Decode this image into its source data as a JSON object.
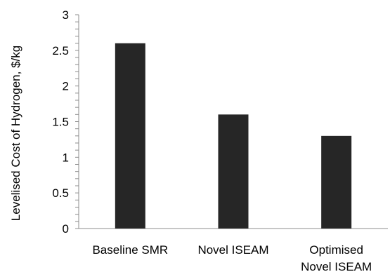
{
  "chart_data": {
    "type": "bar",
    "categories": [
      "Baseline SMR",
      "Novel ISEAM",
      "Optimised Novel ISEAM"
    ],
    "category_lines": [
      [
        "Baseline SMR"
      ],
      [
        "Novel ISEAM"
      ],
      [
        "Optimised",
        "Novel ISEAM"
      ]
    ],
    "values": [
      2.6,
      1.6,
      1.3
    ],
    "ylabel": "Levelised Cost of Hydrogen, $/kg",
    "xlabel": "",
    "ylim": [
      0,
      3
    ],
    "yticks": [
      0,
      0.5,
      1,
      1.5,
      2,
      2.5,
      3
    ],
    "ytick_labels": [
      "0",
      "0.5",
      "1",
      "1.5",
      "2",
      "2.5",
      "3"
    ],
    "minor_ticks_per_major": 5,
    "grid": false,
    "legend": "none",
    "bar_color": "#262626",
    "axis_color": "#8c8c8c"
  }
}
